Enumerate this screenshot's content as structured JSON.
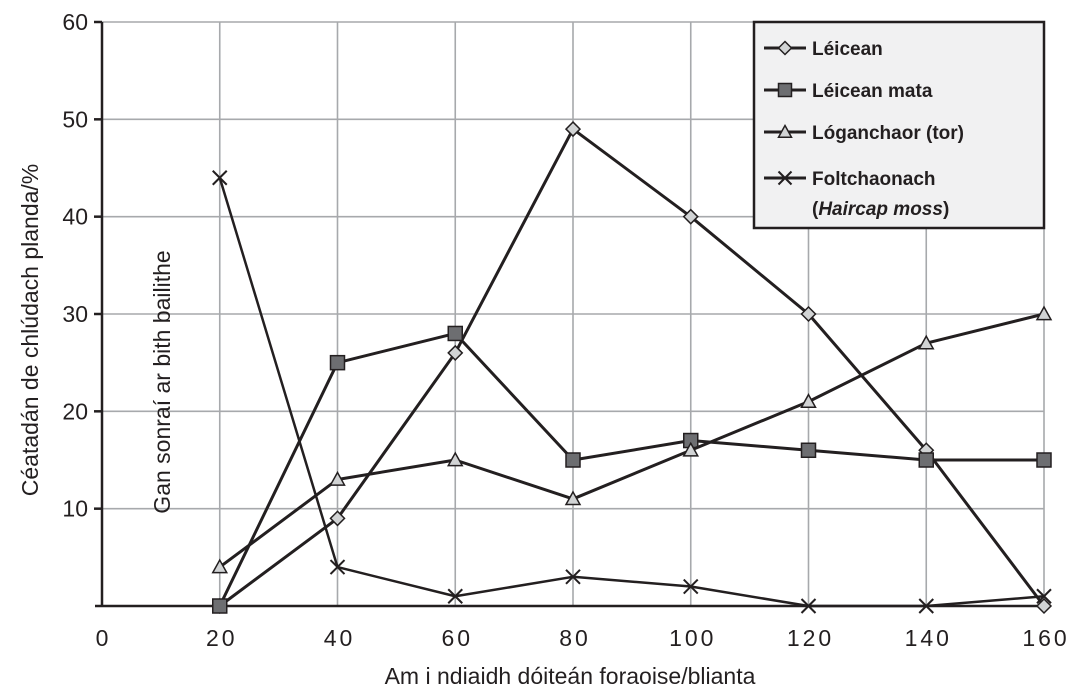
{
  "chart_data": {
    "type": "line",
    "xlabel": "Am i ndiaidh dóiteán foraoise/blianta",
    "ylabel": "Céatadán de chlúdach planda/%",
    "annotation": "Gan sonraí ar bith bailithe",
    "xlim": [
      0,
      160
    ],
    "ylim": [
      0,
      60
    ],
    "x_ticks": [
      0,
      20,
      40,
      60,
      80,
      100,
      120,
      140,
      160
    ],
    "y_ticks": [
      10,
      20,
      30,
      40,
      50,
      60
    ],
    "grid": true,
    "legend_position": "top-right",
    "x": [
      20,
      40,
      60,
      80,
      100,
      120,
      140,
      160
    ],
    "series": [
      {
        "name": "Léicean",
        "marker": "diamond",
        "values": [
          0,
          9,
          26,
          49,
          40,
          30,
          16,
          0
        ]
      },
      {
        "name": "Léicean mata",
        "marker": "square",
        "values": [
          0,
          25,
          28,
          15,
          17,
          16,
          15,
          15
        ]
      },
      {
        "name": "Lóganchaor (tor)",
        "marker": "triangle",
        "values": [
          4,
          13,
          15,
          11,
          16,
          21,
          27,
          30
        ]
      },
      {
        "name": "Foltchaonach",
        "name_italic_part": "Haircap moss",
        "marker": "cross",
        "values": [
          44,
          4,
          1,
          3,
          2,
          0,
          0,
          1
        ]
      }
    ],
    "colors": {
      "line": "#231f20",
      "grid": "#a7a9ac",
      "marker_fill": "#d1d3d4",
      "square_fill": "#6d6e71",
      "legend_bg": "#f1f1f2"
    }
  }
}
